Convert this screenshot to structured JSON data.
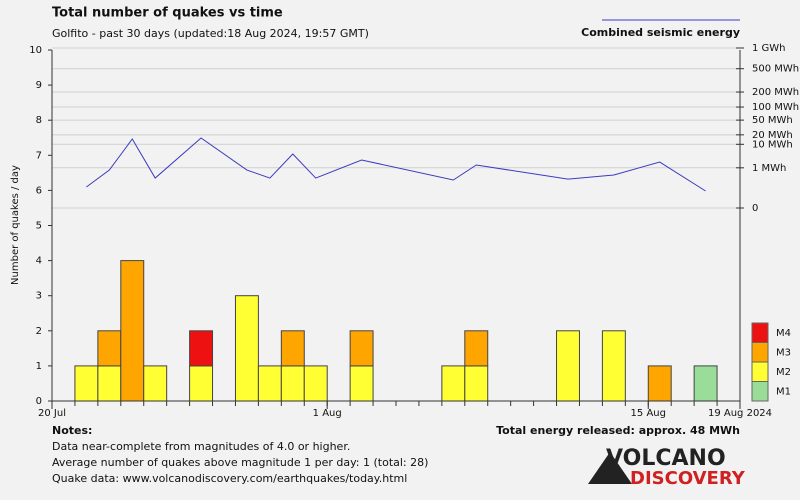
{
  "chart_data": {
    "type": "bar",
    "title": "Total number of quakes vs time",
    "subtitle": "Golfito - past 30 days (updated:18 Aug 2024, 19:57 GMT)",
    "y_label": "Number of quakes / day",
    "categories": [
      null,
      null,
      null,
      null,
      null,
      null,
      null,
      null,
      null,
      null,
      null,
      null,
      null,
      null,
      null,
      null,
      null,
      null,
      null,
      null,
      null,
      null,
      null,
      null,
      null,
      null,
      null,
      null,
      null,
      null
    ],
    "xlim": [
      0,
      30
    ],
    "xticks": [
      {
        "value": 0,
        "label": "20 Jul"
      },
      {
        "value": 12,
        "label": "1 Aug"
      },
      {
        "value": 26,
        "label": "15 Aug"
      },
      {
        "value": 30,
        "label": "19 Aug 2024"
      }
    ],
    "ylim": [
      0,
      10
    ],
    "yticks": [
      0,
      1,
      2,
      3,
      4,
      5,
      6,
      7,
      8,
      9,
      10
    ],
    "series": [
      {
        "name": "M1",
        "color": "#99dd99",
        "values": [
          0,
          0,
          0,
          0,
          0,
          0,
          0,
          0,
          0,
          0,
          0,
          0,
          0,
          0,
          0,
          0,
          0,
          0,
          0,
          0,
          0,
          0,
          0,
          0,
          0,
          0,
          0,
          0,
          1,
          0
        ]
      },
      {
        "name": "M2",
        "color": "#ffff33",
        "values": [
          0,
          1,
          1,
          0,
          1,
          0,
          1,
          0,
          3,
          1,
          1,
          1,
          0,
          1,
          0,
          0,
          0,
          1,
          1,
          0,
          0,
          0,
          2,
          0,
          2,
          0,
          0,
          0,
          0,
          0
        ]
      },
      {
        "name": "M3",
        "color": "#ffa500",
        "values": [
          0,
          0,
          1,
          4,
          0,
          0,
          0,
          0,
          0,
          0,
          1,
          0,
          0,
          1,
          0,
          0,
          0,
          0,
          1,
          0,
          0,
          0,
          0,
          0,
          0,
          0,
          1,
          0,
          0,
          0
        ]
      },
      {
        "name": "M4",
        "color": "#ee1111",
        "values": [
          0,
          0,
          0,
          0,
          0,
          0,
          1,
          0,
          0,
          0,
          0,
          0,
          0,
          0,
          0,
          0,
          0,
          0,
          0,
          0,
          0,
          0,
          0,
          0,
          0,
          0,
          0,
          0,
          0,
          0
        ]
      }
    ],
    "energy": {
      "name": "Combined seismic energy",
      "color": "#3b3bbf",
      "type": "line",
      "axis": "y2",
      "x": [
        1.5,
        2.5,
        3.5,
        4.5,
        6.5,
        8.5,
        9.5,
        10.5,
        11.5,
        13.5,
        17.5,
        18.5,
        22.5,
        24.5,
        26.5,
        28.5
      ],
      "values": [
        0.039,
        0.75,
        14.9,
        0.23,
        16,
        0.75,
        0.23,
        4.37,
        0.23,
        2.43,
        0.164,
        1.4,
        0.19,
        0.373,
        1.96,
        0.0135
      ]
    },
    "y2lim": [
      0,
      1000
    ],
    "y2scale": "power",
    "y2exponent": 0.2,
    "y2ticks": [
      0,
      {
        "value": 1,
        "label": "1 MWh"
      },
      {
        "value": 10,
        "label": "10 MWh"
      },
      {
        "value": 20,
        "label": "20 MWh"
      },
      {
        "value": 50,
        "label": "50 MWh"
      },
      {
        "value": 100,
        "label": "100 MWh"
      },
      {
        "value": 200,
        "label": "200 MWh"
      },
      {
        "value": 500,
        "label": "500 MWh"
      },
      {
        "value": 1000,
        "label": "1 GWh"
      }
    ],
    "total_energy": "Total energy released: approx. 48 MWh",
    "notes_title": "Notes:",
    "notes": [
      "Data near-complete from magnitudes of 4.0 or higher.",
      "Average number of quakes above magnitude 1 per day: 1 (total: 28)",
      "Quake data: www.volcanodiscovery.com/earthquakes/today.html"
    ],
    "logo": [
      "VOLCANO",
      "DISCOVERY"
    ]
  }
}
